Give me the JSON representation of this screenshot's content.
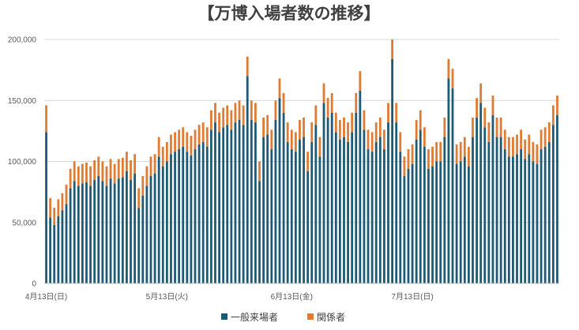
{
  "chart_data": {
    "type": "bar",
    "stacked": true,
    "title": "【万博入場者数の推移】",
    "xlabel": "",
    "ylabel": "",
    "ylim": [
      0,
      200000
    ],
    "y_ticks": [
      "0",
      "50,000",
      "100,000",
      "150,000",
      "200,000"
    ],
    "x_tick_labels": [
      {
        "index": 0,
        "label": "4月13日(日)"
      },
      {
        "index": 30,
        "label": "5月13日(火)"
      },
      {
        "index": 61,
        "label": "6月13日(金)"
      },
      {
        "index": 91,
        "label": "7月13日(日)"
      }
    ],
    "grid": true,
    "legend_position": "bottom",
    "series": [
      {
        "name": "一般来場者",
        "color": "#1f5a74",
        "values": [
          124000,
          54000,
          48000,
          55000,
          60000,
          65000,
          78000,
          84000,
          80000,
          82000,
          83000,
          80000,
          85000,
          88000,
          84000,
          80000,
          86000,
          82000,
          86000,
          87000,
          92000,
          85000,
          90000,
          62000,
          72000,
          80000,
          88000,
          90000,
          104000,
          96000,
          100000,
          106000,
          108000,
          110000,
          112000,
          108000,
          105000,
          110000,
          114000,
          116000,
          112000,
          126000,
          132000,
          124000,
          128000,
          130000,
          126000,
          132000,
          134000,
          130000,
          170000,
          134000,
          132000,
          84000,
          120000,
          122000,
          110000,
          134000,
          152000,
          140000,
          116000,
          110000,
          108000,
          118000,
          120000,
          92000,
          116000,
          130000,
          104000,
          148000,
          136000,
          140000,
          124000,
          118000,
          120000,
          116000,
          124000,
          140000,
          158000,
          126000,
          110000,
          108000,
          116000,
          120000,
          110000,
          132000,
          184000,
          132000,
          108000,
          88000,
          94000,
          98000,
          118000,
          126000,
          112000,
          94000,
          96000,
          100000,
          100000,
          120000,
          168000,
          160000,
          98000,
          100000,
          104000,
          96000,
          120000,
          136000,
          148000,
          128000,
          116000,
          138000,
          120000,
          120000,
          110000,
          104000,
          104000,
          106000,
          110000,
          102000,
          106000,
          100000,
          98000,
          110000,
          112000,
          116000,
          130000,
          138000
        ]
      },
      {
        "name": "関係者",
        "color": "#e07b33",
        "values": [
          22000,
          16000,
          14000,
          14000,
          14000,
          16000,
          16000,
          16000,
          16000,
          16000,
          16000,
          16000,
          16000,
          16000,
          16000,
          16000,
          16000,
          16000,
          16000,
          16000,
          16000,
          16000,
          16000,
          16000,
          16000,
          16000,
          16000,
          16000,
          16000,
          16000,
          16000,
          16000,
          16000,
          16000,
          16000,
          16000,
          16000,
          16000,
          16000,
          16000,
          16000,
          16000,
          16000,
          16000,
          16000,
          16000,
          16000,
          16000,
          16000,
          16000,
          16000,
          16000,
          16000,
          16000,
          16000,
          16000,
          16000,
          16000,
          16000,
          16000,
          16000,
          16000,
          16000,
          16000,
          16000,
          16000,
          16000,
          16000,
          16000,
          16000,
          16000,
          16000,
          16000,
          16000,
          16000,
          16000,
          16000,
          16000,
          16000,
          16000,
          16000,
          16000,
          16000,
          16000,
          16000,
          16000,
          16000,
          16000,
          16000,
          16000,
          16000,
          16000,
          16000,
          16000,
          16000,
          16000,
          16000,
          16000,
          16000,
          16000,
          16000,
          16000,
          16000,
          16000,
          16000,
          16000,
          16000,
          16000,
          16000,
          16000,
          16000,
          16000,
          16000,
          16000,
          16000,
          16000,
          16000,
          16000,
          16000,
          16000,
          16000,
          16000,
          16000,
          16000,
          16000,
          16000,
          16000,
          16000
        ]
      }
    ]
  }
}
